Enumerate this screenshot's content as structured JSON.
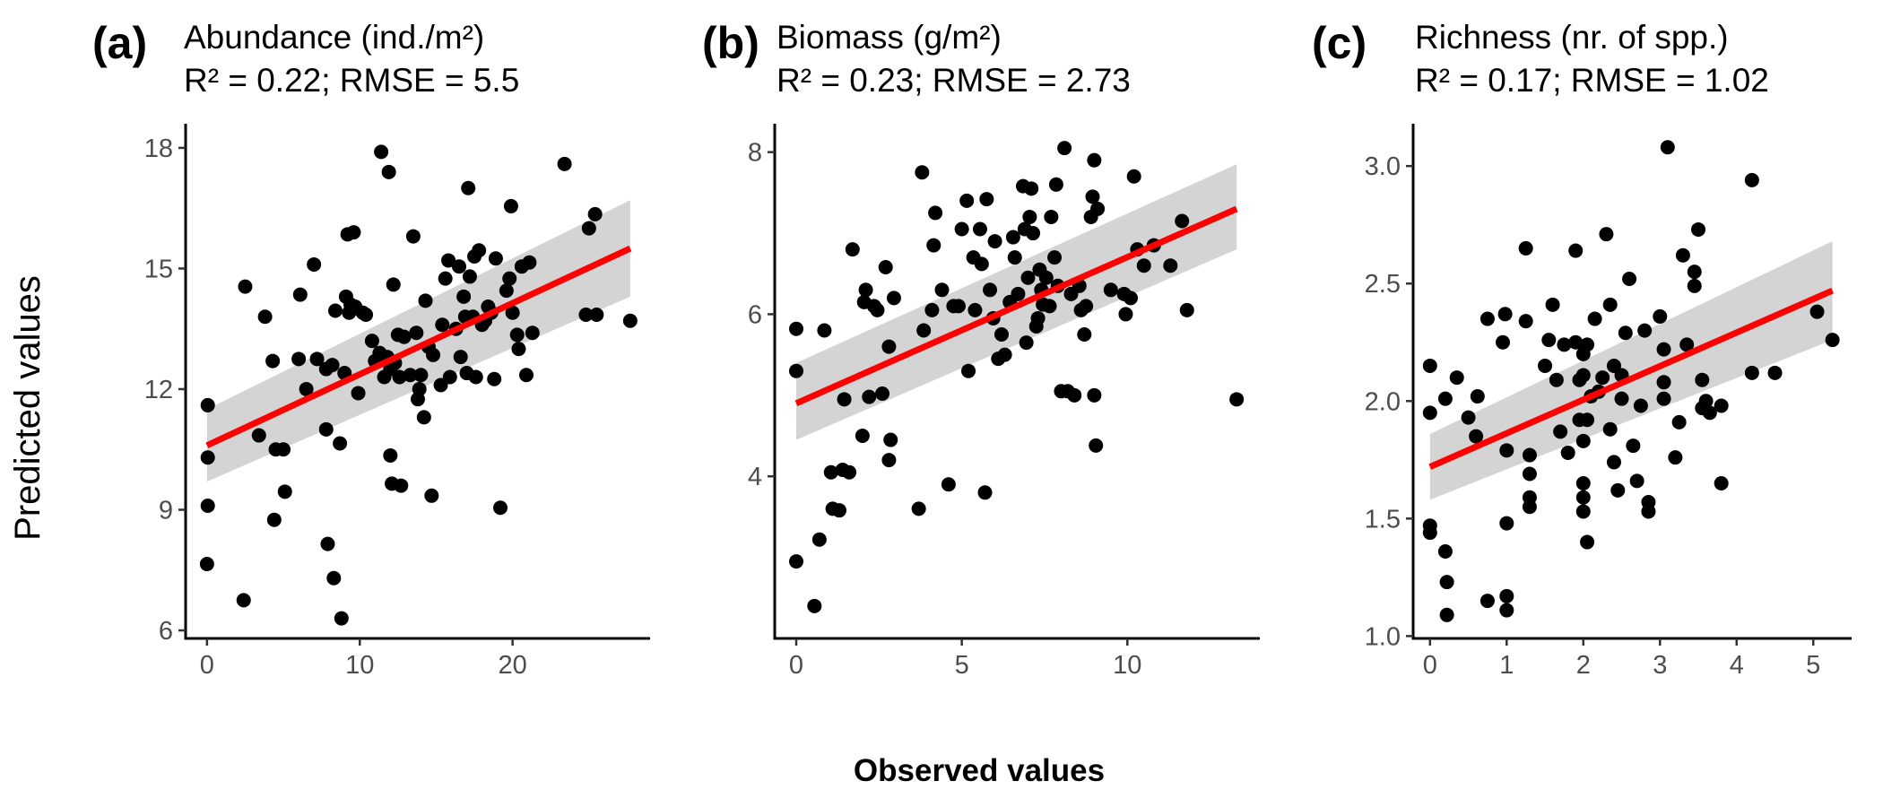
{
  "figure": {
    "y_axis_title": "Predicted values",
    "x_axis_title": "Observed values"
  },
  "chart_data": [
    {
      "type": "scatter",
      "panel_tag": "(a)",
      "title": "Abundance (ind./m²)",
      "subtitle": "R² = 0.22; RMSE = 5.5",
      "xlim": [
        -1.4,
        29
      ],
      "ylim": [
        5.8,
        18.6
      ],
      "xticks": [
        0,
        10,
        20
      ],
      "yticks": [
        6,
        9,
        12,
        15,
        18
      ],
      "xtick_labels": [
        "0",
        "10",
        "20"
      ],
      "ytick_labels": [
        "6",
        "9",
        "12",
        "15",
        "18"
      ],
      "point_color": "#000000",
      "fit": {
        "x": [
          0,
          27.7
        ],
        "y": [
          10.6,
          15.5
        ],
        "ci_lower_at_ends": [
          9.7,
          14.3
        ],
        "ci_upper_at_ends": [
          11.5,
          16.7
        ],
        "color": "#ff0000",
        "ci_color": "#d4d4d4"
      },
      "points": [
        [
          0.05,
          11.6
        ],
        [
          0.05,
          10.3
        ],
        [
          0.05,
          9.1
        ],
        [
          0,
          7.65
        ],
        [
          2.5,
          14.55
        ],
        [
          2.4,
          6.75
        ],
        [
          3.4,
          10.85
        ],
        [
          3.8,
          13.8
        ],
        [
          4.3,
          12.7
        ],
        [
          4.4,
          8.75
        ],
        [
          4.5,
          10.5
        ],
        [
          5,
          10.5
        ],
        [
          5.1,
          9.45
        ],
        [
          6,
          12.75
        ],
        [
          6.1,
          14.35
        ],
        [
          6.5,
          12
        ],
        [
          7,
          15.1
        ],
        [
          7.2,
          12.75
        ],
        [
          7.8,
          12.5
        ],
        [
          7.8,
          11
        ],
        [
          7.9,
          8.15
        ],
        [
          8.2,
          12.6
        ],
        [
          8.3,
          7.3
        ],
        [
          8.4,
          13.95
        ],
        [
          8.7,
          10.65
        ],
        [
          8.8,
          6.3
        ],
        [
          9,
          12.4
        ],
        [
          9.1,
          14.3
        ],
        [
          9.2,
          15.85
        ],
        [
          9.4,
          14.1
        ],
        [
          9.3,
          13.9
        ],
        [
          9.6,
          15.9
        ],
        [
          9.9,
          11.9
        ],
        [
          9.7,
          14.05
        ],
        [
          10.2,
          13.9
        ],
        [
          10.4,
          13.85
        ],
        [
          10.8,
          13.2
        ],
        [
          11,
          12.7
        ],
        [
          11.3,
          12.9
        ],
        [
          11.4,
          17.9
        ],
        [
          11.6,
          12.3
        ],
        [
          11.9,
          17.4
        ],
        [
          11.8,
          12.8
        ],
        [
          12,
          12.5
        ],
        [
          12,
          10.35
        ],
        [
          12.1,
          9.65
        ],
        [
          12.2,
          14.6
        ],
        [
          12.3,
          12.65
        ],
        [
          12.5,
          13.35
        ],
        [
          12.6,
          12.3
        ],
        [
          12.7,
          9.6
        ],
        [
          12.9,
          13.3
        ],
        [
          13.3,
          12.35
        ],
        [
          13.5,
          15.8
        ],
        [
          13.7,
          13.4
        ],
        [
          13.8,
          11.75
        ],
        [
          13.9,
          12
        ],
        [
          14,
          12.35
        ],
        [
          14.2,
          11.3
        ],
        [
          14.3,
          14.2
        ],
        [
          14.5,
          13.05
        ],
        [
          14.7,
          9.35
        ],
        [
          14.8,
          12.85
        ],
        [
          15.3,
          12.1
        ],
        [
          15.4,
          13.6
        ],
        [
          15.6,
          14.75
        ],
        [
          15.8,
          15.2
        ],
        [
          15.9,
          12.3
        ],
        [
          16.3,
          13.5
        ],
        [
          16.5,
          15.05
        ],
        [
          16.6,
          12.8
        ],
        [
          16.8,
          14.3
        ],
        [
          16.9,
          13.8
        ],
        [
          17,
          12.4
        ],
        [
          17.1,
          17
        ],
        [
          17.2,
          14.8
        ],
        [
          17.4,
          13.8
        ],
        [
          17.5,
          15.3
        ],
        [
          17.6,
          12.3
        ],
        [
          17.8,
          15.45
        ],
        [
          18,
          13.6
        ],
        [
          18.2,
          13.7
        ],
        [
          18.4,
          14.05
        ],
        [
          18.6,
          13.9
        ],
        [
          18.8,
          12.25
        ],
        [
          18.9,
          15.25
        ],
        [
          19.2,
          9.05
        ],
        [
          19.6,
          14.45
        ],
        [
          19.9,
          16.55
        ],
        [
          19.8,
          14.75
        ],
        [
          20,
          13.9
        ],
        [
          20.3,
          13.35
        ],
        [
          20.4,
          13
        ],
        [
          20.6,
          15.05
        ],
        [
          20.9,
          12.35
        ],
        [
          21.1,
          15.15
        ],
        [
          21.3,
          13.4
        ],
        [
          23.4,
          17.6
        ],
        [
          24.8,
          13.85
        ],
        [
          25,
          16
        ],
        [
          25.4,
          16.35
        ],
        [
          25.5,
          13.85
        ],
        [
          27.7,
          13.7
        ]
      ]
    },
    {
      "type": "scatter",
      "panel_tag": "(b)",
      "title": "Biomass (g/m²)",
      "subtitle": "R² = 0.23; RMSE = 2.73",
      "xlim": [
        -0.65,
        14
      ],
      "ylim": [
        2,
        8.35
      ],
      "xticks": [
        0,
        5,
        10
      ],
      "yticks": [
        4,
        6,
        8
      ],
      "xtick_labels": [
        "0",
        "5",
        "10"
      ],
      "ytick_labels": [
        "4",
        "6",
        "8"
      ],
      "point_color": "#000000",
      "fit": {
        "x": [
          0,
          13.3
        ],
        "y": [
          4.9,
          7.3
        ],
        "ci_lower_at_ends": [
          4.45,
          6.8
        ],
        "ci_upper_at_ends": [
          5.4,
          7.85
        ],
        "color": "#ff0000",
        "ci_color": "#d4d4d4"
      },
      "points": [
        [
          0,
          5.82
        ],
        [
          0,
          5.3
        ],
        [
          0,
          2.95
        ],
        [
          0.55,
          2.4
        ],
        [
          0.7,
          3.22
        ],
        [
          0.85,
          5.8
        ],
        [
          1.05,
          4.05
        ],
        [
          1.1,
          3.6
        ],
        [
          1.3,
          3.58
        ],
        [
          1.4,
          4.08
        ],
        [
          1.45,
          4.95
        ],
        [
          1.6,
          4.05
        ],
        [
          1.7,
          6.8
        ],
        [
          2,
          4.5
        ],
        [
          2.05,
          6.15
        ],
        [
          2.1,
          6.3
        ],
        [
          2.2,
          4.98
        ],
        [
          2.35,
          6.1
        ],
        [
          2.45,
          6.05
        ],
        [
          2.6,
          5.02
        ],
        [
          2.7,
          6.58
        ],
        [
          2.8,
          5.6
        ],
        [
          2.8,
          4.2
        ],
        [
          2.85,
          4.45
        ],
        [
          2.95,
          6.2
        ],
        [
          3.7,
          3.6
        ],
        [
          3.8,
          7.75
        ],
        [
          3.85,
          5.8
        ],
        [
          4.1,
          6.05
        ],
        [
          4.15,
          6.85
        ],
        [
          4.2,
          7.25
        ],
        [
          4.4,
          6.3
        ],
        [
          4.6,
          3.9
        ],
        [
          4.75,
          6.1
        ],
        [
          4.9,
          6.1
        ],
        [
          5,
          7.05
        ],
        [
          5.15,
          7.4
        ],
        [
          5.2,
          5.3
        ],
        [
          5.35,
          6.7
        ],
        [
          5.4,
          6.05
        ],
        [
          5.55,
          7.05
        ],
        [
          5.6,
          6.62
        ],
        [
          5.7,
          3.8
        ],
        [
          5.75,
          7.42
        ],
        [
          5.85,
          6.3
        ],
        [
          5.95,
          5.95
        ],
        [
          6,
          6.9
        ],
        [
          6.1,
          5.45
        ],
        [
          6.2,
          5.75
        ],
        [
          6.3,
          5.5
        ],
        [
          6.45,
          6.15
        ],
        [
          6.55,
          6.95
        ],
        [
          6.6,
          6.7
        ],
        [
          6.7,
          6.25
        ],
        [
          6.85,
          7.58
        ],
        [
          6.9,
          7.05
        ],
        [
          6.95,
          5.65
        ],
        [
          7,
          6.45
        ],
        [
          7.05,
          7.2
        ],
        [
          7.1,
          7.55
        ],
        [
          7.15,
          7
        ],
        [
          7.25,
          5.85
        ],
        [
          7.3,
          5.95
        ],
        [
          7.35,
          6.55
        ],
        [
          7.4,
          6.3
        ],
        [
          7.45,
          6.12
        ],
        [
          7.55,
          6.45
        ],
        [
          7.65,
          6.1
        ],
        [
          7.7,
          7.2
        ],
        [
          7.8,
          6.7
        ],
        [
          7.85,
          7.6
        ],
        [
          7.9,
          6.35
        ],
        [
          8,
          5.05
        ],
        [
          8.1,
          8.05
        ],
        [
          8.2,
          5.05
        ],
        [
          8.3,
          6.25
        ],
        [
          8.4,
          5.0
        ],
        [
          8.55,
          6.35
        ],
        [
          8.6,
          6.05
        ],
        [
          8.7,
          5.75
        ],
        [
          8.75,
          6.1
        ],
        [
          8.9,
          7.2
        ],
        [
          8.95,
          7.45
        ],
        [
          9,
          7.9
        ],
        [
          9,
          5
        ],
        [
          9.05,
          4.38
        ],
        [
          9.1,
          7.3
        ],
        [
          9.5,
          6.3
        ],
        [
          9.9,
          6.25
        ],
        [
          9.95,
          6
        ],
        [
          10.1,
          6.2
        ],
        [
          10.2,
          7.7
        ],
        [
          10.3,
          6.8
        ],
        [
          10.5,
          6.6
        ],
        [
          10.8,
          6.85
        ],
        [
          11.3,
          6.6
        ],
        [
          11.65,
          7.15
        ],
        [
          11.8,
          6.05
        ],
        [
          13.3,
          4.95
        ]
      ]
    },
    {
      "type": "scatter",
      "panel_tag": "(c)",
      "title": "Richness (nr. of spp.)",
      "subtitle": "R² = 0.17; RMSE = 1.02",
      "xlim": [
        -0.22,
        5.5
      ],
      "ylim": [
        0.99,
        3.18
      ],
      "xticks": [
        0,
        1,
        2,
        3,
        4,
        5
      ],
      "yticks": [
        1.0,
        1.5,
        2.0,
        2.5,
        3.0
      ],
      "xtick_labels": [
        "0",
        "1",
        "2",
        "3",
        "4",
        "5"
      ],
      "ytick_labels": [
        "1.0",
        "1.5",
        "2.0",
        "2.5",
        "3.0"
      ],
      "point_color": "#000000",
      "fit": {
        "x": [
          0,
          5.25
        ],
        "y": [
          1.72,
          2.47
        ],
        "ci_lower_at_ends": [
          1.58,
          2.26
        ],
        "ci_upper_at_ends": [
          1.86,
          2.68
        ],
        "color": "#ff0000",
        "ci_color": "#d4d4d4"
      },
      "points": [
        [
          0,
          2.15
        ],
        [
          0,
          1.95
        ],
        [
          0,
          1.47
        ],
        [
          0,
          1.44
        ],
        [
          0.2,
          2.01
        ],
        [
          0.2,
          1.36
        ],
        [
          0.22,
          1.23
        ],
        [
          0.22,
          1.09
        ],
        [
          0.35,
          2.1
        ],
        [
          0.5,
          1.93
        ],
        [
          0.6,
          1.85
        ],
        [
          0.62,
          2.02
        ],
        [
          0.75,
          2.35
        ],
        [
          0.75,
          1.15
        ],
        [
          0.95,
          2.25
        ],
        [
          0.98,
          2.37
        ],
        [
          1,
          1.48
        ],
        [
          1.0,
          1.79
        ],
        [
          1.0,
          1.17
        ],
        [
          1.0,
          1.11
        ],
        [
          1.25,
          2.65
        ],
        [
          1.25,
          2.34
        ],
        [
          1.3,
          1.77
        ],
        [
          1.3,
          1.69
        ],
        [
          1.3,
          1.59
        ],
        [
          1.3,
          1.55
        ],
        [
          1.5,
          2.15
        ],
        [
          1.55,
          2.26
        ],
        [
          1.6,
          2.41
        ],
        [
          1.65,
          2.09
        ],
        [
          1.7,
          1.87
        ],
        [
          1.75,
          2.24
        ],
        [
          1.8,
          1.78
        ],
        [
          1.9,
          2.25
        ],
        [
          1.9,
          2.64
        ],
        [
          1.95,
          2.09
        ],
        [
          1.95,
          1.92
        ],
        [
          2,
          2.2
        ],
        [
          2,
          2.11
        ],
        [
          2,
          1.65
        ],
        [
          2,
          1.59
        ],
        [
          2,
          1.53
        ],
        [
          2,
          1.83
        ],
        [
          2.05,
          2.24
        ],
        [
          2.05,
          1.92
        ],
        [
          2.05,
          1.4
        ],
        [
          2.1,
          2.02
        ],
        [
          2.15,
          2.35
        ],
        [
          2.2,
          2.04
        ],
        [
          2.25,
          2.1
        ],
        [
          2.3,
          2.71
        ],
        [
          2.35,
          2.41
        ],
        [
          2.35,
          1.88
        ],
        [
          2.4,
          2.15
        ],
        [
          2.4,
          1.74
        ],
        [
          2.45,
          1.62
        ],
        [
          2.5,
          2.11
        ],
        [
          2.5,
          2.01
        ],
        [
          2.55,
          2.29
        ],
        [
          2.6,
          2.52
        ],
        [
          2.65,
          1.81
        ],
        [
          2.7,
          1.66
        ],
        [
          2.75,
          1.98
        ],
        [
          2.8,
          2.3
        ],
        [
          2.85,
          1.57
        ],
        [
          2.85,
          1.53
        ],
        [
          3,
          2.36
        ],
        [
          3.05,
          2.22
        ],
        [
          3.05,
          2.08
        ],
        [
          3.05,
          2.01
        ],
        [
          3.1,
          3.08
        ],
        [
          3.2,
          1.76
        ],
        [
          3.25,
          1.91
        ],
        [
          3.3,
          2.62
        ],
        [
          3.35,
          2.24
        ],
        [
          3.45,
          2.55
        ],
        [
          3.45,
          2.49
        ],
        [
          3.5,
          2.73
        ],
        [
          3.55,
          2.09
        ],
        [
          3.55,
          1.97
        ],
        [
          3.6,
          2.0
        ],
        [
          3.65,
          1.95
        ],
        [
          3.8,
          1.65
        ],
        [
          3.8,
          1.98
        ],
        [
          4.2,
          2.94
        ],
        [
          4.2,
          2.12
        ],
        [
          4.5,
          2.12
        ],
        [
          5.05,
          2.38
        ],
        [
          5.25,
          2.26
        ]
      ]
    }
  ]
}
